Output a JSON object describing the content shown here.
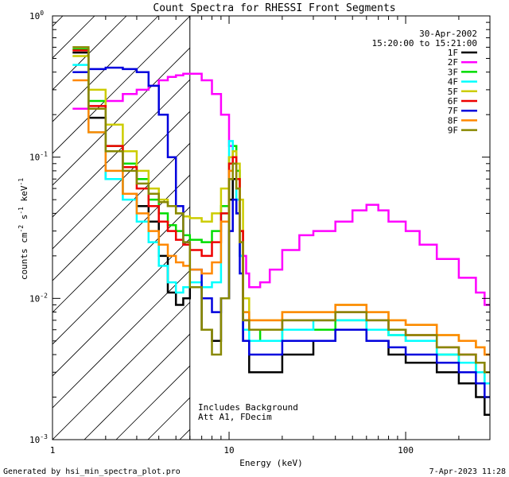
{
  "chart_data": {
    "type": "line",
    "title": "Count Spectra for RHESSI Front Segments",
    "xlabel": "Energy (keV)",
    "ylabel_main": "counts cm",
    "ylabel_exp1": "-2",
    "ylabel_mid": " s",
    "ylabel_exp2": "-1",
    "ylabel_tail": " keV",
    "ylabel_exp3": "-1",
    "x_scale": "log",
    "y_scale": "log",
    "xlim": [
      1,
      300
    ],
    "ylim": [
      0.001,
      1
    ],
    "x_ticks": [
      {
        "value": 1,
        "label": "1"
      },
      {
        "value": 10,
        "label": "10"
      },
      {
        "value": 100,
        "label": "100"
      }
    ],
    "y_ticks": [
      {
        "value": 1,
        "base": "10",
        "exp": "0"
      },
      {
        "value": 0.1,
        "base": "10",
        "exp": "-1"
      },
      {
        "value": 0.01,
        "base": "10",
        "exp": "-2"
      },
      {
        "value": 0.001,
        "base": "10",
        "exp": "-3"
      }
    ],
    "date": "30-Apr-2002",
    "time_range": "15:20:00 to 15:21:00",
    "hatch_region_xmax": 6,
    "annotations": [
      "Includes Background",
      "Att A1, FDecim"
    ],
    "footer_left": "Generated by hsi_min_spectra_plot.pro",
    "footer_right": "7-Apr-2023 11:28",
    "series": [
      {
        "name": "1F",
        "color": "#000000",
        "x": [
          1.3,
          1.6,
          2,
          2.5,
          3,
          3.5,
          4,
          4.5,
          5,
          5.5,
          6,
          7,
          8,
          9,
          10,
          10.5,
          11,
          11.5,
          12,
          13,
          15,
          20,
          30,
          40,
          60,
          80,
          100,
          150,
          200,
          250,
          280
        ],
        "y": [
          0.55,
          0.19,
          0.07,
          0.055,
          0.045,
          0.035,
          0.02,
          0.011,
          0.009,
          0.01,
          0.012,
          0.006,
          0.005,
          0.01,
          0.05,
          0.07,
          0.04,
          0.02,
          0.005,
          0.003,
          0.003,
          0.004,
          0.005,
          0.006,
          0.005,
          0.004,
          0.0035,
          0.003,
          0.0025,
          0.002,
          0.0015
        ]
      },
      {
        "name": "2F",
        "color": "#ff00ff",
        "x": [
          1.3,
          1.6,
          2,
          2.5,
          3,
          3.5,
          4,
          4.5,
          5,
          5.5,
          6,
          7,
          8,
          9,
          10,
          10.5,
          11,
          11.5,
          12,
          12.5,
          13,
          14,
          15,
          17,
          20,
          25,
          30,
          40,
          50,
          60,
          70,
          80,
          100,
          120,
          150,
          200,
          250,
          280
        ],
        "y": [
          0.22,
          0.22,
          0.25,
          0.28,
          0.3,
          0.32,
          0.35,
          0.37,
          0.38,
          0.39,
          0.39,
          0.35,
          0.28,
          0.2,
          0.12,
          0.09,
          0.05,
          0.03,
          0.02,
          0.015,
          0.012,
          0.012,
          0.013,
          0.016,
          0.022,
          0.028,
          0.03,
          0.035,
          0.042,
          0.046,
          0.042,
          0.035,
          0.03,
          0.024,
          0.019,
          0.014,
          0.011,
          0.009
        ]
      },
      {
        "name": "3F",
        "color": "#00dd00",
        "x": [
          1.3,
          1.6,
          2,
          2.5,
          3,
          3.5,
          4,
          4.5,
          5,
          5.5,
          6,
          7,
          8,
          9,
          10,
          10.5,
          11,
          11.5,
          12,
          13,
          15,
          20,
          30,
          40,
          60,
          80,
          100,
          150,
          200,
          250,
          280
        ],
        "y": [
          0.58,
          0.25,
          0.12,
          0.09,
          0.07,
          0.05,
          0.04,
          0.033,
          0.03,
          0.028,
          0.026,
          0.025,
          0.03,
          0.045,
          0.1,
          0.12,
          0.08,
          0.03,
          0.008,
          0.006,
          0.005,
          0.006,
          0.006,
          0.007,
          0.006,
          0.0055,
          0.005,
          0.004,
          0.0035,
          0.003,
          0.0025
        ]
      },
      {
        "name": "4F",
        "color": "#00ffff",
        "x": [
          1.3,
          1.6,
          2,
          2.5,
          3,
          3.5,
          4,
          4.5,
          5,
          5.5,
          6,
          7,
          8,
          9,
          10,
          10.5,
          11,
          11.5,
          12,
          13,
          15,
          20,
          30,
          40,
          60,
          80,
          100,
          150,
          200,
          250,
          280
        ],
        "y": [
          0.45,
          0.15,
          0.07,
          0.05,
          0.035,
          0.025,
          0.017,
          0.013,
          0.011,
          0.012,
          0.013,
          0.012,
          0.013,
          0.04,
          0.13,
          0.1,
          0.05,
          0.02,
          0.006,
          0.005,
          0.005,
          0.006,
          0.007,
          0.007,
          0.006,
          0.0055,
          0.005,
          0.004,
          0.0035,
          0.003,
          0.0025
        ]
      },
      {
        "name": "5F",
        "color": "#cccc00",
        "x": [
          1.3,
          1.6,
          2,
          2.5,
          3,
          3.5,
          4,
          4.5,
          5,
          5.5,
          6,
          7,
          8,
          9,
          10,
          10.5,
          11,
          11.5,
          12,
          13,
          15,
          20,
          30,
          40,
          60,
          80,
          100,
          150,
          200,
          250,
          280
        ],
        "y": [
          0.52,
          0.3,
          0.17,
          0.11,
          0.08,
          0.06,
          0.05,
          0.045,
          0.04,
          0.038,
          0.037,
          0.035,
          0.04,
          0.06,
          0.1,
          0.11,
          0.09,
          0.05,
          0.01,
          0.007,
          0.007,
          0.008,
          0.008,
          0.009,
          0.008,
          0.007,
          0.0065,
          0.0055,
          0.005,
          0.0045,
          0.004
        ]
      },
      {
        "name": "6F",
        "color": "#ee0000",
        "x": [
          1.3,
          1.6,
          2,
          2.5,
          3,
          3.5,
          4,
          4.5,
          5,
          5.5,
          6,
          7,
          8,
          9,
          10,
          10.5,
          11,
          11.5,
          12,
          13,
          15,
          20,
          30,
          40,
          60,
          80,
          100,
          150,
          200,
          250,
          280
        ],
        "y": [
          0.57,
          0.23,
          0.12,
          0.085,
          0.06,
          0.045,
          0.035,
          0.03,
          0.026,
          0.024,
          0.022,
          0.02,
          0.025,
          0.04,
          0.09,
          0.1,
          0.07,
          0.03,
          0.007,
          0.006,
          0.006,
          0.007,
          0.007,
          0.008,
          0.007,
          0.006,
          0.0055,
          0.0045,
          0.004,
          0.0035,
          0.003
        ]
      },
      {
        "name": "7F",
        "color": "#0000dd",
        "x": [
          1.3,
          1.6,
          2,
          2.5,
          3,
          3.5,
          4,
          4.5,
          5,
          5.5,
          6,
          7,
          8,
          9,
          10,
          10.5,
          11,
          11.5,
          12,
          13,
          15,
          20,
          30,
          40,
          60,
          80,
          100,
          150,
          200,
          250,
          280
        ],
        "y": [
          0.4,
          0.42,
          0.43,
          0.42,
          0.4,
          0.32,
          0.2,
          0.1,
          0.045,
          0.025,
          0.016,
          0.01,
          0.008,
          0.01,
          0.03,
          0.05,
          0.04,
          0.015,
          0.005,
          0.004,
          0.004,
          0.005,
          0.005,
          0.006,
          0.005,
          0.0045,
          0.004,
          0.0035,
          0.003,
          0.0025,
          0.002
        ]
      },
      {
        "name": "8F",
        "color": "#ff8800",
        "x": [
          1.3,
          1.6,
          2,
          2.5,
          3,
          3.5,
          4,
          4.5,
          5,
          5.5,
          6,
          7,
          8,
          9,
          10,
          10.5,
          11,
          11.5,
          12,
          13,
          15,
          20,
          30,
          40,
          60,
          80,
          100,
          150,
          200,
          250,
          280
        ],
        "y": [
          0.35,
          0.15,
          0.08,
          0.055,
          0.04,
          0.03,
          0.024,
          0.02,
          0.018,
          0.017,
          0.016,
          0.015,
          0.018,
          0.035,
          0.08,
          0.09,
          0.06,
          0.025,
          0.008,
          0.007,
          0.007,
          0.008,
          0.008,
          0.009,
          0.008,
          0.007,
          0.0065,
          0.0055,
          0.005,
          0.0045,
          0.004
        ]
      },
      {
        "name": "9F",
        "color": "#888800",
        "x": [
          1.3,
          1.6,
          2,
          2.5,
          3,
          3.5,
          4,
          4.5,
          5,
          5.5,
          6,
          7,
          8,
          9,
          10,
          10.5,
          11,
          11.5,
          12,
          13,
          15,
          20,
          30,
          40,
          60,
          80,
          100,
          150,
          200,
          250,
          280
        ],
        "y": [
          0.6,
          0.22,
          0.11,
          0.08,
          0.065,
          0.055,
          0.048,
          0.045,
          0.04,
          0.025,
          0.012,
          0.006,
          0.004,
          0.01,
          0.07,
          0.09,
          0.06,
          0.025,
          0.007,
          0.006,
          0.006,
          0.007,
          0.007,
          0.008,
          0.007,
          0.006,
          0.0055,
          0.0045,
          0.004,
          0.0035,
          0.003
        ]
      }
    ]
  }
}
